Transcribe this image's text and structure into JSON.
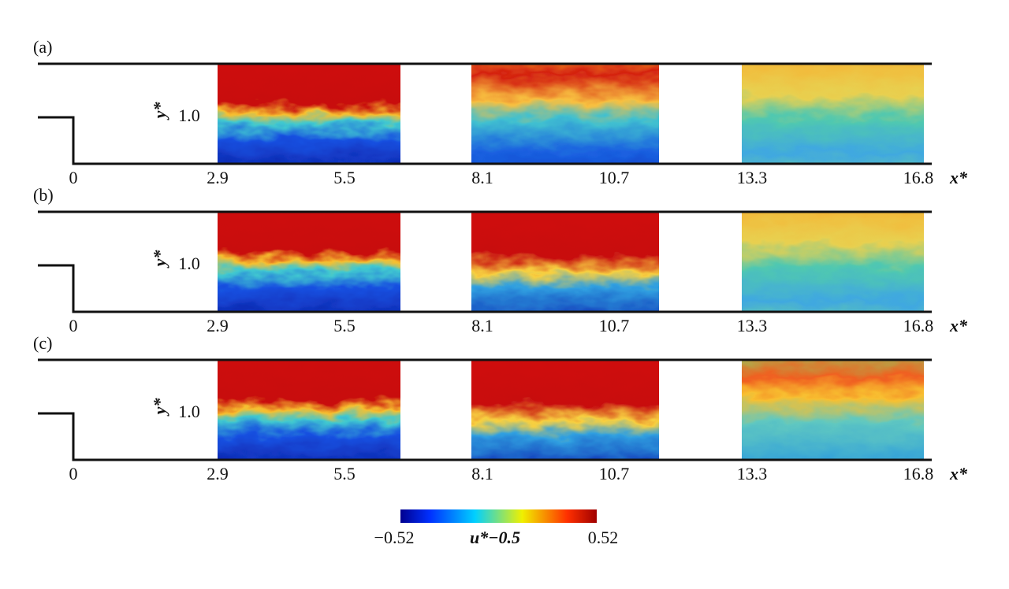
{
  "panels": [
    {
      "label": "(a)",
      "y_label": "y*",
      "y_tick": "1.0",
      "x_ticks": [
        "0",
        "2.9",
        "5.5",
        "8.1",
        "10.7",
        "13.3",
        "16.8"
      ],
      "x_label": "x*"
    },
    {
      "label": "(b)",
      "y_label": "y*",
      "y_tick": "1.0",
      "x_ticks": [
        "0",
        "2.9",
        "5.5",
        "8.1",
        "10.7",
        "13.3",
        "16.8"
      ],
      "x_label": "x*"
    },
    {
      "label": "(c)",
      "y_label": "y*",
      "y_tick": "1.0",
      "x_ticks": [
        "0",
        "2.9",
        "5.5",
        "8.1",
        "10.7",
        "13.3",
        "16.8"
      ],
      "x_label": "x*"
    }
  ],
  "colorbar": {
    "min_label": "−0.52",
    "title": "u*−0.5",
    "max_label": "0.52"
  }
}
